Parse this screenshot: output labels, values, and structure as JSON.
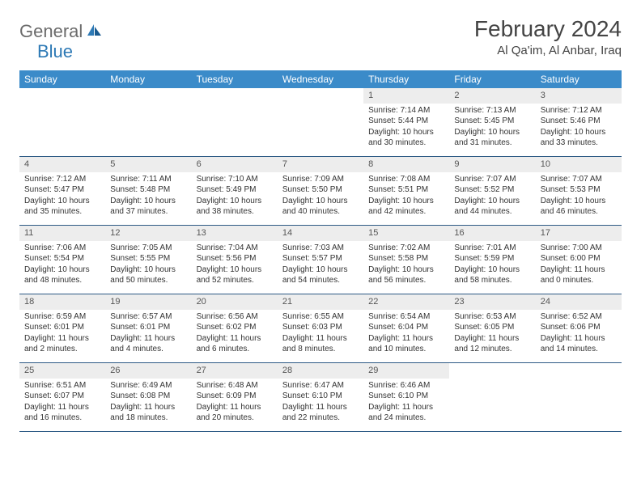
{
  "logo": {
    "general": "General",
    "blue": "Blue"
  },
  "title": "February 2024",
  "location": "Al Qa'im, Al Anbar, Iraq",
  "colors": {
    "header_bg": "#3b8bc9",
    "header_text": "#ffffff",
    "daynum_bg": "#ededed",
    "border": "#2d5a85",
    "logo_gray": "#6b6b6b",
    "logo_blue": "#2d79b5",
    "text": "#333333"
  },
  "weekdays": [
    "Sunday",
    "Monday",
    "Tuesday",
    "Wednesday",
    "Thursday",
    "Friday",
    "Saturday"
  ],
  "weeks": [
    [
      {
        "n": "",
        "empty": true
      },
      {
        "n": "",
        "empty": true
      },
      {
        "n": "",
        "empty": true
      },
      {
        "n": "",
        "empty": true
      },
      {
        "n": "1",
        "sr": "Sunrise: 7:14 AM",
        "ss": "Sunset: 5:44 PM",
        "d1": "Daylight: 10 hours",
        "d2": "and 30 minutes."
      },
      {
        "n": "2",
        "sr": "Sunrise: 7:13 AM",
        "ss": "Sunset: 5:45 PM",
        "d1": "Daylight: 10 hours",
        "d2": "and 31 minutes."
      },
      {
        "n": "3",
        "sr": "Sunrise: 7:12 AM",
        "ss": "Sunset: 5:46 PM",
        "d1": "Daylight: 10 hours",
        "d2": "and 33 minutes."
      }
    ],
    [
      {
        "n": "4",
        "sr": "Sunrise: 7:12 AM",
        "ss": "Sunset: 5:47 PM",
        "d1": "Daylight: 10 hours",
        "d2": "and 35 minutes."
      },
      {
        "n": "5",
        "sr": "Sunrise: 7:11 AM",
        "ss": "Sunset: 5:48 PM",
        "d1": "Daylight: 10 hours",
        "d2": "and 37 minutes."
      },
      {
        "n": "6",
        "sr": "Sunrise: 7:10 AM",
        "ss": "Sunset: 5:49 PM",
        "d1": "Daylight: 10 hours",
        "d2": "and 38 minutes."
      },
      {
        "n": "7",
        "sr": "Sunrise: 7:09 AM",
        "ss": "Sunset: 5:50 PM",
        "d1": "Daylight: 10 hours",
        "d2": "and 40 minutes."
      },
      {
        "n": "8",
        "sr": "Sunrise: 7:08 AM",
        "ss": "Sunset: 5:51 PM",
        "d1": "Daylight: 10 hours",
        "d2": "and 42 minutes."
      },
      {
        "n": "9",
        "sr": "Sunrise: 7:07 AM",
        "ss": "Sunset: 5:52 PM",
        "d1": "Daylight: 10 hours",
        "d2": "and 44 minutes."
      },
      {
        "n": "10",
        "sr": "Sunrise: 7:07 AM",
        "ss": "Sunset: 5:53 PM",
        "d1": "Daylight: 10 hours",
        "d2": "and 46 minutes."
      }
    ],
    [
      {
        "n": "11",
        "sr": "Sunrise: 7:06 AM",
        "ss": "Sunset: 5:54 PM",
        "d1": "Daylight: 10 hours",
        "d2": "and 48 minutes."
      },
      {
        "n": "12",
        "sr": "Sunrise: 7:05 AM",
        "ss": "Sunset: 5:55 PM",
        "d1": "Daylight: 10 hours",
        "d2": "and 50 minutes."
      },
      {
        "n": "13",
        "sr": "Sunrise: 7:04 AM",
        "ss": "Sunset: 5:56 PM",
        "d1": "Daylight: 10 hours",
        "d2": "and 52 minutes."
      },
      {
        "n": "14",
        "sr": "Sunrise: 7:03 AM",
        "ss": "Sunset: 5:57 PM",
        "d1": "Daylight: 10 hours",
        "d2": "and 54 minutes."
      },
      {
        "n": "15",
        "sr": "Sunrise: 7:02 AM",
        "ss": "Sunset: 5:58 PM",
        "d1": "Daylight: 10 hours",
        "d2": "and 56 minutes."
      },
      {
        "n": "16",
        "sr": "Sunrise: 7:01 AM",
        "ss": "Sunset: 5:59 PM",
        "d1": "Daylight: 10 hours",
        "d2": "and 58 minutes."
      },
      {
        "n": "17",
        "sr": "Sunrise: 7:00 AM",
        "ss": "Sunset: 6:00 PM",
        "d1": "Daylight: 11 hours",
        "d2": "and 0 minutes."
      }
    ],
    [
      {
        "n": "18",
        "sr": "Sunrise: 6:59 AM",
        "ss": "Sunset: 6:01 PM",
        "d1": "Daylight: 11 hours",
        "d2": "and 2 minutes."
      },
      {
        "n": "19",
        "sr": "Sunrise: 6:57 AM",
        "ss": "Sunset: 6:01 PM",
        "d1": "Daylight: 11 hours",
        "d2": "and 4 minutes."
      },
      {
        "n": "20",
        "sr": "Sunrise: 6:56 AM",
        "ss": "Sunset: 6:02 PM",
        "d1": "Daylight: 11 hours",
        "d2": "and 6 minutes."
      },
      {
        "n": "21",
        "sr": "Sunrise: 6:55 AM",
        "ss": "Sunset: 6:03 PM",
        "d1": "Daylight: 11 hours",
        "d2": "and 8 minutes."
      },
      {
        "n": "22",
        "sr": "Sunrise: 6:54 AM",
        "ss": "Sunset: 6:04 PM",
        "d1": "Daylight: 11 hours",
        "d2": "and 10 minutes."
      },
      {
        "n": "23",
        "sr": "Sunrise: 6:53 AM",
        "ss": "Sunset: 6:05 PM",
        "d1": "Daylight: 11 hours",
        "d2": "and 12 minutes."
      },
      {
        "n": "24",
        "sr": "Sunrise: 6:52 AM",
        "ss": "Sunset: 6:06 PM",
        "d1": "Daylight: 11 hours",
        "d2": "and 14 minutes."
      }
    ],
    [
      {
        "n": "25",
        "sr": "Sunrise: 6:51 AM",
        "ss": "Sunset: 6:07 PM",
        "d1": "Daylight: 11 hours",
        "d2": "and 16 minutes."
      },
      {
        "n": "26",
        "sr": "Sunrise: 6:49 AM",
        "ss": "Sunset: 6:08 PM",
        "d1": "Daylight: 11 hours",
        "d2": "and 18 minutes."
      },
      {
        "n": "27",
        "sr": "Sunrise: 6:48 AM",
        "ss": "Sunset: 6:09 PM",
        "d1": "Daylight: 11 hours",
        "d2": "and 20 minutes."
      },
      {
        "n": "28",
        "sr": "Sunrise: 6:47 AM",
        "ss": "Sunset: 6:10 PM",
        "d1": "Daylight: 11 hours",
        "d2": "and 22 minutes."
      },
      {
        "n": "29",
        "sr": "Sunrise: 6:46 AM",
        "ss": "Sunset: 6:10 PM",
        "d1": "Daylight: 11 hours",
        "d2": "and 24 minutes."
      },
      {
        "n": "",
        "empty": true
      },
      {
        "n": "",
        "empty": true
      }
    ]
  ]
}
